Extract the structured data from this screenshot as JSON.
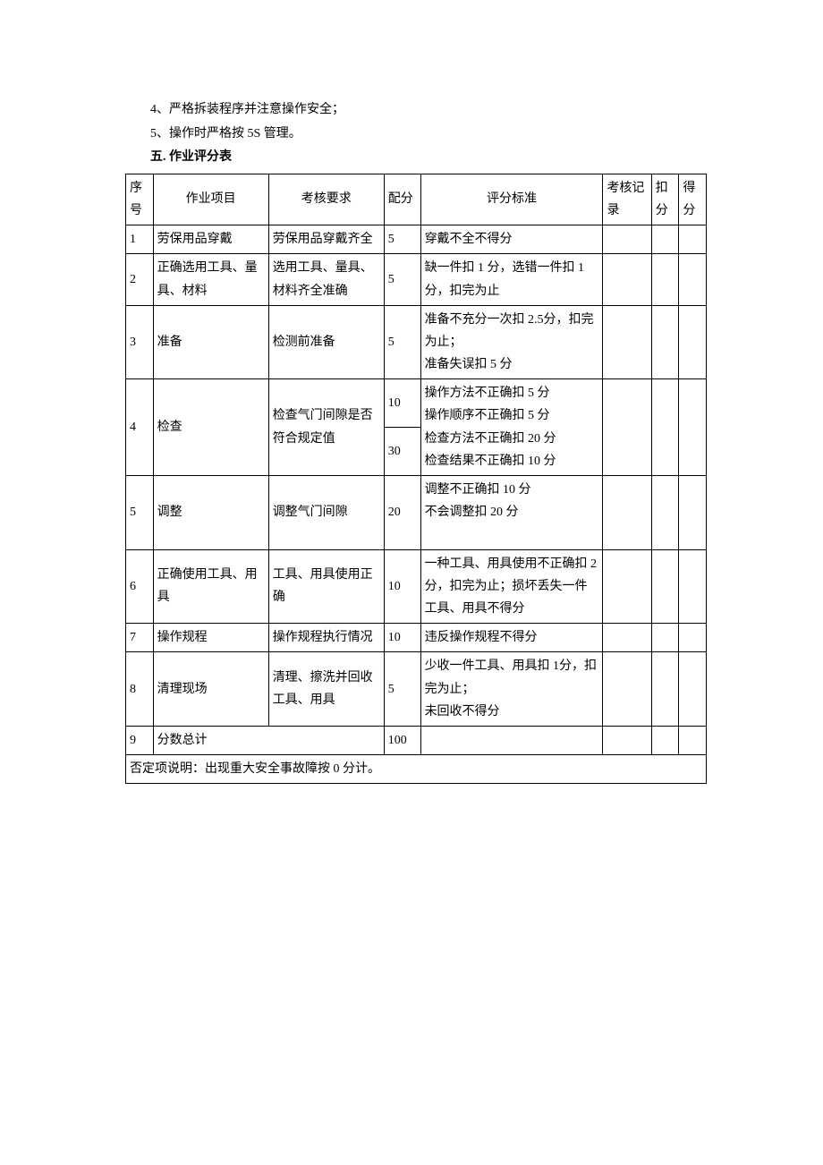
{
  "paragraphs": {
    "p4": "4、严格拆装程序并注意操作安全；",
    "p5": "5、操作时严格按 5S 管理。"
  },
  "heading": "五. 作业评分表",
  "table": {
    "header": {
      "seq": "序号",
      "item": "作业项目",
      "req": "考核要求",
      "score": "配分",
      "std": "评分标准",
      "rec": "考核记录",
      "ded": "扣分",
      "get": "得分"
    },
    "rows": [
      {
        "seq": "1",
        "item": "劳保用品穿戴",
        "req": "劳保用品穿戴齐全",
        "score": "5",
        "std": "穿戴不全不得分"
      },
      {
        "seq": "2",
        "item": "正确选用工具、量具、材料",
        "req": "选用工具、量具、材料齐全准确",
        "score": "5",
        "std": "缺一件扣 1 分，选错一件扣 1 分，扣完为止"
      },
      {
        "seq": "3",
        "item": "准备",
        "req": "检测前准备",
        "score": "5",
        "std": "准备不充分一次扣 2.5分，扣完为止；\n准备失误扣 5 分"
      },
      {
        "seq": "4",
        "item": "检查",
        "req": "检查气门间隙是否符合规定值",
        "score_a": "10",
        "score_b": "30",
        "std": "操作方法不正确扣 5 分\n操作顺序不正确扣 5 分\n检查方法不正确扣 20 分\n检查结果不正确扣 10 分"
      },
      {
        "seq": "5",
        "item": "调整",
        "req": "调整气门间隙",
        "score": "20",
        "std": "调整不正确扣 10 分\n不会调整扣 20 分\n　"
      },
      {
        "seq": "6",
        "item": "正确使用工具、用具",
        "req": "工具、用具使用正确",
        "score": "10",
        "std": "一种工具、用具使用不正确扣 2 分，扣完为止；损坏丢失一件工具、用具不得分"
      },
      {
        "seq": "7",
        "item": "操作规程",
        "req": "操作规程执行情况",
        "score": "10",
        "std": "违反操作规程不得分"
      },
      {
        "seq": "8",
        "item": "清理现场",
        "req": "清理、擦洗并回收工具、用具",
        "score": "5",
        "std": "少收一件工具、用具扣 1分，扣完为止；\n未回收不得分"
      }
    ],
    "total": {
      "seq": "9",
      "label": "分数总计",
      "score": "100"
    },
    "footer": "否定项说明：出现重大安全事故障按 0 分计。"
  },
  "style": {
    "font_family": "SimSun",
    "font_size_pt": 10.5,
    "text_color": "#000000",
    "border_color": "#000000",
    "background_color": "#ffffff",
    "columns": [
      {
        "key": "seq",
        "width_pct": 4.5,
        "align": "left"
      },
      {
        "key": "item",
        "width_pct": 19,
        "align": "left"
      },
      {
        "key": "req",
        "width_pct": 19,
        "align": "left"
      },
      {
        "key": "score",
        "width_pct": 6,
        "align": "left"
      },
      {
        "key": "std",
        "width_pct": 30,
        "align": "left"
      },
      {
        "key": "rec",
        "width_pct": 8,
        "align": "left"
      },
      {
        "key": "ded",
        "width_pct": 4.5,
        "align": "left"
      },
      {
        "key": "get",
        "width_pct": 4.5,
        "align": "left"
      }
    ]
  }
}
